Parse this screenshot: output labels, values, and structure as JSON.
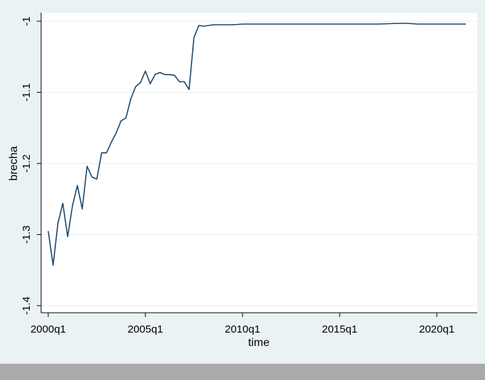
{
  "chart_data": {
    "type": "line",
    "xlabel": "time",
    "ylabel": "brecha",
    "xlim": [
      2000.0,
      2021.75
    ],
    "ylim": [
      -1.4,
      -1.0
    ],
    "grid": true,
    "legend": "none",
    "line_color": "#1a476f",
    "plot_background": "#ffffff",
    "xticks": [
      {
        "value": 2000,
        "label": "2000q1"
      },
      {
        "value": 2005,
        "label": "2005q1"
      },
      {
        "value": 2010,
        "label": "2010q1"
      },
      {
        "value": 2015,
        "label": "2015q1"
      },
      {
        "value": 2020,
        "label": "2020q1"
      }
    ],
    "yticks": [
      {
        "value": -1.0,
        "label": "-1"
      },
      {
        "value": -1.1,
        "label": "-1.1"
      },
      {
        "value": -1.2,
        "label": "-1.2"
      },
      {
        "value": -1.3,
        "label": "-1.3"
      },
      {
        "value": -1.4,
        "label": "-1.4"
      }
    ],
    "series": [
      {
        "x": [
          2000.0,
          2000.25,
          2000.5,
          2000.75,
          2001.0,
          2001.25,
          2001.5,
          2001.75,
          2002.0,
          2002.25,
          2002.5,
          2002.75,
          2003.0,
          2003.25,
          2003.5,
          2003.75,
          2004.0,
          2004.25,
          2004.5,
          2004.75,
          2005.0,
          2005.25,
          2005.5,
          2005.75,
          2006.0,
          2006.25,
          2006.5,
          2006.75,
          2007.0,
          2007.25,
          2007.5,
          2007.75,
          2008.0,
          2008.5,
          2009.0,
          2009.5,
          2010.0,
          2011.0,
          2012.0,
          2013.0,
          2014.0,
          2015.0,
          2015.5,
          2016.0,
          2017.0,
          2018.0,
          2018.5,
          2019.0,
          2019.5,
          2020.0,
          2020.5,
          2021.0,
          2021.5
        ],
        "y": [
          -1.295,
          -1.343,
          -1.284,
          -1.256,
          -1.303,
          -1.259,
          -1.231,
          -1.264,
          -1.204,
          -1.219,
          -1.222,
          -1.185,
          -1.185,
          -1.17,
          -1.157,
          -1.14,
          -1.136,
          -1.109,
          -1.092,
          -1.086,
          -1.07,
          -1.088,
          -1.075,
          -1.072,
          -1.075,
          -1.075,
          -1.076,
          -1.085,
          -1.085,
          -1.096,
          -1.023,
          -1.006,
          -1.007,
          -1.005,
          -1.005,
          -1.005,
          -1.004,
          -1.004,
          -1.004,
          -1.004,
          -1.004,
          -1.004,
          -1.004,
          -1.004,
          -1.004,
          -1.003,
          -1.003,
          -1.004,
          -1.004,
          -1.004,
          -1.004,
          -1.004,
          -1.004
        ]
      }
    ]
  }
}
